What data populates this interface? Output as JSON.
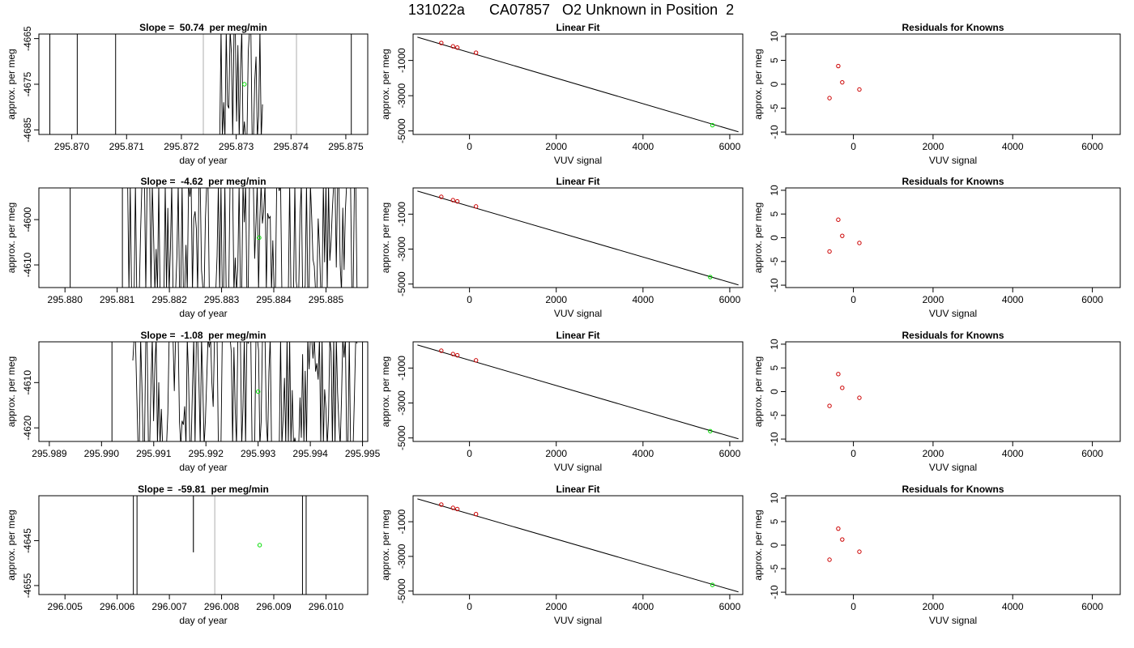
{
  "page_title": "131022a      CA07857   O2 Unknown in Position  2",
  "colors": {
    "known": "#cc0000",
    "unknown": "#00dd00",
    "line": "#000000",
    "marker": "#bbbbbb"
  },
  "chart_data": [
    {
      "type": "line",
      "row": 0,
      "title": "Slope =  50.74  per meg/min",
      "xlabel": "day of year",
      "ylabel": "approx. per meg",
      "xlim": [
        295.8694,
        295.8754
      ],
      "ylim": [
        -4686,
        -4664
      ],
      "xticks": [
        "295.870",
        "295.871",
        "295.872",
        "295.873",
        "295.874",
        "295.875"
      ],
      "yticks": [
        "-4665",
        "-4675",
        "-4685"
      ],
      "verticals": [
        295.8696,
        295.8701,
        295.8708,
        295.8751
      ],
      "gray_verticals": [
        295.8724,
        295.8741
      ],
      "noise": {
        "from": 295.8727,
        "to": 295.8735
      },
      "unknown_point": {
        "x": 295.87315,
        "y": -4675
      }
    },
    {
      "type": "scatter",
      "row": 0,
      "title": "Linear Fit",
      "xlabel": "VUV signal",
      "ylabel": "approx. per meg",
      "xlim": [
        -1300,
        6300
      ],
      "ylim": [
        -5200,
        500
      ],
      "xticks": [
        "0",
        "2000",
        "4000",
        "6000"
      ],
      "yticks": [
        "-1000",
        "-3000",
        "-5000"
      ],
      "fit_line": {
        "x": [
          -1200,
          6200
        ],
        "y": [
          320,
          -5050
        ]
      },
      "knowns": [
        {
          "x": -650,
          "y": -10
        },
        {
          "x": -380,
          "y": -200
        },
        {
          "x": -280,
          "y": -270
        },
        {
          "x": 150,
          "y": -560
        }
      ],
      "unknown": {
        "x": 5600,
        "y": -4675
      }
    },
    {
      "type": "scatter",
      "row": 0,
      "title": "Residuals for Knowns",
      "xlabel": "VUV signal",
      "ylabel": "approx. per meg",
      "xlim": [
        -1700,
        6700
      ],
      "ylim": [
        -10.5,
        10.5
      ],
      "xticks": [
        "0",
        "2000",
        "4000",
        "6000"
      ],
      "yticks": [
        "-10",
        "-5",
        "0",
        "5",
        "10"
      ],
      "knowns": [
        {
          "x": -600,
          "y": -2.9
        },
        {
          "x": -380,
          "y": 3.8
        },
        {
          "x": -280,
          "y": 0.4
        },
        {
          "x": 150,
          "y": -1.1
        }
      ]
    },
    {
      "type": "line",
      "row": 1,
      "title": "Slope =  -4.62  per meg/min",
      "xlabel": "day of year",
      "ylabel": "approx. per meg",
      "xlim": [
        295.8795,
        295.8858
      ],
      "ylim": [
        -4615,
        -4593
      ],
      "xticks": [
        "295.880",
        "295.881",
        "295.882",
        "295.883",
        "295.884",
        "295.885"
      ],
      "yticks": [
        "-4600",
        "-4610"
      ],
      "verticals": [
        295.8801,
        295.8811
      ],
      "gray_verticals": [],
      "noise": {
        "from": 295.8812,
        "to": 295.8856
      },
      "unknown_point": {
        "x": 295.88372,
        "y": -4604
      }
    },
    {
      "type": "scatter",
      "row": 1,
      "title": "Linear Fit",
      "xlabel": "VUV signal",
      "ylabel": "approx. per meg",
      "xlim": [
        -1300,
        6300
      ],
      "ylim": [
        -5200,
        500
      ],
      "xticks": [
        "0",
        "2000",
        "4000",
        "6000"
      ],
      "yticks": [
        "-1000",
        "-3000",
        "-5000"
      ],
      "fit_line": {
        "x": [
          -1200,
          6200
        ],
        "y": [
          320,
          -5050
        ]
      },
      "knowns": [
        {
          "x": -650,
          "y": -10
        },
        {
          "x": -380,
          "y": -200
        },
        {
          "x": -280,
          "y": -270
        },
        {
          "x": 150,
          "y": -560
        }
      ],
      "unknown": {
        "x": 5550,
        "y": -4600
      }
    },
    {
      "type": "scatter",
      "row": 1,
      "title": "Residuals for Knowns",
      "xlabel": "VUV signal",
      "ylabel": "approx. per meg",
      "xlim": [
        -1700,
        6700
      ],
      "ylim": [
        -10.5,
        10.5
      ],
      "xticks": [
        "0",
        "2000",
        "4000",
        "6000"
      ],
      "yticks": [
        "-10",
        "-5",
        "0",
        "5",
        "10"
      ],
      "knowns": [
        {
          "x": -600,
          "y": -2.9
        },
        {
          "x": -380,
          "y": 3.8
        },
        {
          "x": -280,
          "y": 0.4
        },
        {
          "x": 150,
          "y": -1.1
        }
      ]
    },
    {
      "type": "line",
      "row": 2,
      "title": "Slope =  -1.08  per meg/min",
      "xlabel": "day of year",
      "ylabel": "approx. per meg",
      "xlim": [
        295.9888,
        295.9951
      ],
      "ylim": [
        -4623,
        -4601
      ],
      "xticks": [
        "295.989",
        "295.990",
        "295.991",
        "295.992",
        "295.993",
        "295.994",
        "295.995"
      ],
      "yticks": [
        "-4610",
        "-4620"
      ],
      "verticals": [
        295.9902,
        295.995
      ],
      "gray_verticals": [],
      "noise": {
        "from": 295.9906,
        "to": 295.9949
      },
      "unknown_point": {
        "x": 295.993,
        "y": -4612
      }
    },
    {
      "type": "scatter",
      "row": 2,
      "title": "Linear Fit",
      "xlabel": "VUV signal",
      "ylabel": "approx. per meg",
      "xlim": [
        -1300,
        6300
      ],
      "ylim": [
        -5200,
        500
      ],
      "xticks": [
        "0",
        "2000",
        "4000",
        "6000"
      ],
      "yticks": [
        "-1000",
        "-3000",
        "-5000"
      ],
      "fit_line": {
        "x": [
          -1200,
          6200
        ],
        "y": [
          320,
          -5050
        ]
      },
      "knowns": [
        {
          "x": -650,
          "y": -10
        },
        {
          "x": -380,
          "y": -200
        },
        {
          "x": -280,
          "y": -270
        },
        {
          "x": 150,
          "y": -560
        }
      ],
      "unknown": {
        "x": 5550,
        "y": -4610
      }
    },
    {
      "type": "scatter",
      "row": 2,
      "title": "Residuals for Knowns",
      "xlabel": "VUV signal",
      "ylabel": "approx. per meg",
      "xlim": [
        -1700,
        6700
      ],
      "ylim": [
        -10.5,
        10.5
      ],
      "xticks": [
        "0",
        "2000",
        "4000",
        "6000"
      ],
      "yticks": [
        "-10",
        "-5",
        "0",
        "5",
        "10"
      ],
      "knowns": [
        {
          "x": -600,
          "y": -3.0
        },
        {
          "x": -380,
          "y": 3.7
        },
        {
          "x": -280,
          "y": 0.8
        },
        {
          "x": 150,
          "y": -1.3
        }
      ]
    },
    {
      "type": "line",
      "row": 3,
      "title": "Slope =  -59.81  per meg/min",
      "xlabel": "day of year",
      "ylabel": "approx. per meg",
      "xlim": [
        296.0045,
        296.0108
      ],
      "ylim": [
        -4657,
        -4635
      ],
      "xticks": [
        "296.005",
        "296.006",
        "296.007",
        "296.008",
        "296.009",
        "296.010"
      ],
      "yticks": [
        "-4645",
        "-4655"
      ],
      "verticals": [
        296.00631,
        296.00638,
        296.00955,
        296.00962
      ],
      "gray_verticals": [
        296.00787
      ],
      "spike": {
        "x": 296.00746,
        "y": -4637.5
      },
      "unknown_point": {
        "x": 296.00873,
        "y": -4646
      }
    },
    {
      "type": "scatter",
      "row": 3,
      "title": "Linear Fit",
      "xlabel": "VUV signal",
      "ylabel": "approx. per meg",
      "xlim": [
        -1300,
        6300
      ],
      "ylim": [
        -5200,
        500
      ],
      "xticks": [
        "0",
        "2000",
        "4000",
        "6000"
      ],
      "yticks": [
        "-1000",
        "-3000",
        "-5000"
      ],
      "fit_line": {
        "x": [
          -1200,
          6200
        ],
        "y": [
          320,
          -5050
        ]
      },
      "knowns": [
        {
          "x": -650,
          "y": -10
        },
        {
          "x": -380,
          "y": -200
        },
        {
          "x": -280,
          "y": -270
        },
        {
          "x": 150,
          "y": -560
        }
      ],
      "unknown": {
        "x": 5600,
        "y": -4645
      }
    },
    {
      "type": "scatter",
      "row": 3,
      "title": "Residuals for Knowns",
      "xlabel": "VUV signal",
      "ylabel": "approx. per meg",
      "xlim": [
        -1700,
        6700
      ],
      "ylim": [
        -10.5,
        10.5
      ],
      "xticks": [
        "0",
        "2000",
        "4000",
        "6000"
      ],
      "yticks": [
        "-10",
        "-5",
        "0",
        "5",
        "10"
      ],
      "knowns": [
        {
          "x": -600,
          "y": -3.1
        },
        {
          "x": -380,
          "y": 3.5
        },
        {
          "x": -280,
          "y": 1.2
        },
        {
          "x": 150,
          "y": -1.4
        }
      ]
    }
  ]
}
